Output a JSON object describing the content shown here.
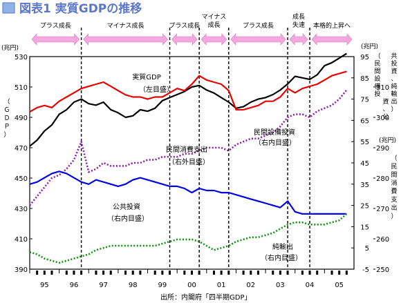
{
  "title": "図表1 実質GDPの推移",
  "source": "出所：内閣府「四半期GDP」",
  "colors": {
    "title_color": "#5b77c9",
    "phase_arrow": "#f2a8df",
    "gdp": "#000000",
    "capex": "#e60000",
    "consumption": "#8a1ea6",
    "public_inv": "#0000e6",
    "net_exports": "#119011"
  },
  "phases": [
    {
      "label": "プラス成長",
      "start": 1995.0,
      "end": 1996.75
    },
    {
      "label": "マイナス成長",
      "start": 1996.75,
      "end": 1999.75
    },
    {
      "label": "プラス成長",
      "start": 1999.75,
      "end": 2000.75
    },
    {
      "label": "マイナス\n成長",
      "start": 2000.75,
      "end": 2001.75
    },
    {
      "label": "プラス成長",
      "start": 2001.75,
      "end": 2003.75
    },
    {
      "label": "成長\n失速",
      "start": 2003.75,
      "end": 2004.5
    },
    {
      "label": "本格的上昇へ",
      "start": 2004.5,
      "end": 2006.0
    }
  ],
  "annotations": [
    {
      "text": "実質GDP",
      "sub": "（左目盛）"
    },
    {
      "text": "民間消費支出",
      "sub": "（右外目盛）"
    },
    {
      "text": "民間設備投資",
      "sub": "（右内目盛）"
    },
    {
      "text": "公共投資",
      "sub": "（右内目盛）"
    },
    {
      "text": "純輸出",
      "sub": "（右内目盛）"
    }
  ],
  "chart_data": {
    "type": "line",
    "x_tick_labels": [
      "95",
      "96",
      "97",
      "98",
      "99",
      "00",
      "01",
      "02",
      "03",
      "04",
      "05"
    ],
    "phase_dividers": [
      1996.75,
      1999.75,
      2000.75,
      2001.75,
      2003.75,
      2004.5
    ],
    "y_left": {
      "label": "（ＧＤＰ）",
      "unit": "(兆円)",
      "range": [
        390,
        530
      ],
      "ticks": [
        390,
        410,
        430,
        450,
        470,
        490,
        510,
        530
      ]
    },
    "y_right_inner": {
      "label": "（民間設備投資、公共投資、純輸出）",
      "unit": "(兆円)",
      "range": [
        -5,
        95
      ],
      "ticks": [
        -5,
        5,
        15,
        25,
        35,
        45,
        55,
        65,
        75,
        85,
        95
      ]
    },
    "y_right_outer": {
      "label": "（民間消費支出）",
      "unit": "(兆円)",
      "range": [
        250,
        320
      ],
      "ticks": [
        250,
        260,
        270,
        280,
        290,
        300,
        310
      ]
    },
    "x_range": [
      1995.0,
      2006.0
    ],
    "series": [
      {
        "name": "実質GDP",
        "axis": "left",
        "color": "#000000",
        "style": "solid",
        "points": [
          [
            1995.0,
            471
          ],
          [
            1995.25,
            475
          ],
          [
            1995.5,
            481
          ],
          [
            1995.75,
            485
          ],
          [
            1996.0,
            492
          ],
          [
            1996.25,
            495
          ],
          [
            1996.5,
            500
          ],
          [
            1996.75,
            502
          ],
          [
            1997.0,
            499
          ],
          [
            1997.25,
            498
          ],
          [
            1997.5,
            500
          ],
          [
            1997.75,
            495
          ],
          [
            1998.0,
            493
          ],
          [
            1998.25,
            490
          ],
          [
            1998.5,
            491
          ],
          [
            1998.75,
            495
          ],
          [
            1999.0,
            494
          ],
          [
            1999.25,
            496
          ],
          [
            1999.5,
            501
          ],
          [
            1999.75,
            503
          ],
          [
            2000.0,
            505
          ],
          [
            2000.25,
            507
          ],
          [
            2000.5,
            510
          ],
          [
            2000.75,
            511
          ],
          [
            2001.0,
            508
          ],
          [
            2001.25,
            506
          ],
          [
            2001.5,
            503
          ],
          [
            2001.75,
            500
          ],
          [
            2002.0,
            496
          ],
          [
            2002.25,
            497
          ],
          [
            2002.5,
            500
          ],
          [
            2002.75,
            502
          ],
          [
            2003.0,
            503
          ],
          [
            2003.25,
            505
          ],
          [
            2003.5,
            508
          ],
          [
            2003.75,
            512
          ],
          [
            2004.0,
            517
          ],
          [
            2004.25,
            516
          ],
          [
            2004.5,
            515
          ],
          [
            2004.75,
            518
          ],
          [
            2005.0,
            524
          ],
          [
            2005.25,
            526
          ],
          [
            2005.5,
            529
          ],
          [
            2005.75,
            532
          ]
        ]
      },
      {
        "name": "民間設備投資",
        "axis": "right_inner",
        "color": "#e60000",
        "style": "solid",
        "points": [
          [
            1995.0,
            69
          ],
          [
            1995.25,
            71
          ],
          [
            1995.5,
            72
          ],
          [
            1995.75,
            71
          ],
          [
            1996.0,
            74
          ],
          [
            1996.25,
            76
          ],
          [
            1996.5,
            78
          ],
          [
            1996.75,
            80
          ],
          [
            1997.0,
            81
          ],
          [
            1997.25,
            82
          ],
          [
            1997.5,
            83
          ],
          [
            1997.75,
            81
          ],
          [
            1998.0,
            79
          ],
          [
            1998.25,
            77
          ],
          [
            1998.5,
            76
          ],
          [
            1998.75,
            76
          ],
          [
            1999.0,
            75
          ],
          [
            1999.25,
            76
          ],
          [
            1999.5,
            76
          ],
          [
            1999.75,
            78
          ],
          [
            2000.0,
            80
          ],
          [
            2000.25,
            79
          ],
          [
            2000.5,
            82
          ],
          [
            2000.75,
            86
          ],
          [
            2001.0,
            84
          ],
          [
            2001.25,
            83
          ],
          [
            2001.5,
            82
          ],
          [
            2001.75,
            79
          ],
          [
            2002.0,
            70
          ],
          [
            2002.25,
            70
          ],
          [
            2002.5,
            71
          ],
          [
            2002.75,
            72
          ],
          [
            2003.0,
            74
          ],
          [
            2003.25,
            74
          ],
          [
            2003.5,
            76
          ],
          [
            2003.75,
            80
          ],
          [
            2004.0,
            78
          ],
          [
            2004.25,
            80
          ],
          [
            2004.5,
            81
          ],
          [
            2004.75,
            82
          ],
          [
            2005.0,
            84
          ],
          [
            2005.25,
            86
          ],
          [
            2005.5,
            87
          ],
          [
            2005.75,
            88
          ]
        ]
      },
      {
        "name": "民間消費支出",
        "axis": "right_outer",
        "color": "#8a1ea6",
        "style": "dotted",
        "points": [
          [
            1995.0,
            271
          ],
          [
            1995.25,
            274
          ],
          [
            1995.5,
            277
          ],
          [
            1995.75,
            280
          ],
          [
            1996.0,
            281
          ],
          [
            1996.25,
            283
          ],
          [
            1996.5,
            286
          ],
          [
            1996.75,
            292
          ],
          [
            1997.0,
            282
          ],
          [
            1997.25,
            283
          ],
          [
            1997.5,
            285
          ],
          [
            1997.75,
            284
          ],
          [
            1998.0,
            284
          ],
          [
            1998.25,
            284
          ],
          [
            1998.5,
            285
          ],
          [
            1998.75,
            285
          ],
          [
            1999.0,
            286
          ],
          [
            1999.25,
            286
          ],
          [
            1999.5,
            287
          ],
          [
            1999.75,
            287
          ],
          [
            2000.0,
            287
          ],
          [
            2000.25,
            288
          ],
          [
            2000.5,
            288
          ],
          [
            2000.75,
            289
          ],
          [
            2001.0,
            290
          ],
          [
            2001.25,
            290
          ],
          [
            2001.5,
            290
          ],
          [
            2001.75,
            289
          ],
          [
            2002.0,
            291
          ],
          [
            2002.25,
            292
          ],
          [
            2002.5,
            293
          ],
          [
            2002.75,
            293
          ],
          [
            2003.0,
            294
          ],
          [
            2003.25,
            295
          ],
          [
            2003.5,
            297
          ],
          [
            2003.75,
            300
          ],
          [
            2004.0,
            301
          ],
          [
            2004.25,
            301
          ],
          [
            2004.5,
            300
          ],
          [
            2004.75,
            302
          ],
          [
            2005.0,
            303
          ],
          [
            2005.25,
            304
          ],
          [
            2005.5,
            306
          ],
          [
            2005.75,
            309
          ]
        ]
      },
      {
        "name": "公共投資",
        "axis": "right_inner",
        "color": "#0000e6",
        "style": "solid",
        "points": [
          [
            1995.0,
            35
          ],
          [
            1995.25,
            36
          ],
          [
            1995.5,
            38
          ],
          [
            1995.75,
            40
          ],
          [
            1996.0,
            41
          ],
          [
            1996.25,
            40
          ],
          [
            1996.5,
            38
          ],
          [
            1996.75,
            36
          ],
          [
            1997.0,
            35
          ],
          [
            1997.25,
            37
          ],
          [
            1997.5,
            36
          ],
          [
            1997.75,
            35
          ],
          [
            1998.0,
            34
          ],
          [
            1998.25,
            35
          ],
          [
            1998.5,
            37
          ],
          [
            1998.75,
            38
          ],
          [
            1999.0,
            37
          ],
          [
            1999.25,
            36
          ],
          [
            1999.5,
            35
          ],
          [
            1999.75,
            34
          ],
          [
            2000.0,
            34
          ],
          [
            2000.25,
            33
          ],
          [
            2000.5,
            31
          ],
          [
            2000.75,
            33
          ],
          [
            2001.0,
            32
          ],
          [
            2001.25,
            32
          ],
          [
            2001.5,
            31
          ],
          [
            2001.75,
            31
          ],
          [
            2002.0,
            30
          ],
          [
            2002.25,
            29
          ],
          [
            2002.5,
            28
          ],
          [
            2002.75,
            27
          ],
          [
            2003.0,
            26
          ],
          [
            2003.25,
            25
          ],
          [
            2003.5,
            24
          ],
          [
            2003.75,
            27
          ],
          [
            2004.0,
            22
          ],
          [
            2004.25,
            21
          ],
          [
            2004.5,
            21
          ],
          [
            2004.75,
            21
          ],
          [
            2005.0,
            21
          ],
          [
            2005.25,
            21
          ],
          [
            2005.5,
            21
          ],
          [
            2005.75,
            21
          ]
        ]
      },
      {
        "name": "純輸出",
        "axis": "right_inner",
        "color": "#119011",
        "style": "dotted",
        "points": [
          [
            1995.0,
            3
          ],
          [
            1995.25,
            2
          ],
          [
            1995.5,
            0
          ],
          [
            1995.75,
            -1
          ],
          [
            1996.0,
            -2
          ],
          [
            1996.25,
            -1
          ],
          [
            1996.5,
            0
          ],
          [
            1996.75,
            1
          ],
          [
            1997.0,
            2
          ],
          [
            1997.25,
            4
          ],
          [
            1997.5,
            5
          ],
          [
            1997.75,
            6
          ],
          [
            1998.0,
            6
          ],
          [
            1998.25,
            6
          ],
          [
            1998.5,
            6
          ],
          [
            1998.75,
            6
          ],
          [
            1999.0,
            6
          ],
          [
            1999.25,
            6
          ],
          [
            1999.5,
            7
          ],
          [
            1999.75,
            8
          ],
          [
            2000.0,
            9
          ],
          [
            2000.25,
            9
          ],
          [
            2000.5,
            9
          ],
          [
            2000.75,
            8
          ],
          [
            2001.0,
            6
          ],
          [
            2001.25,
            4
          ],
          [
            2001.5,
            5
          ],
          [
            2001.75,
            6
          ],
          [
            2002.0,
            8
          ],
          [
            2002.25,
            9
          ],
          [
            2002.5,
            10
          ],
          [
            2002.75,
            10
          ],
          [
            2003.0,
            11
          ],
          [
            2003.25,
            12
          ],
          [
            2003.5,
            14
          ],
          [
            2003.75,
            16
          ],
          [
            2004.0,
            17
          ],
          [
            2004.25,
            17
          ],
          [
            2004.5,
            16
          ],
          [
            2004.75,
            16
          ],
          [
            2005.0,
            16
          ],
          [
            2005.25,
            17
          ],
          [
            2005.5,
            18
          ],
          [
            2005.75,
            21
          ]
        ]
      }
    ]
  }
}
